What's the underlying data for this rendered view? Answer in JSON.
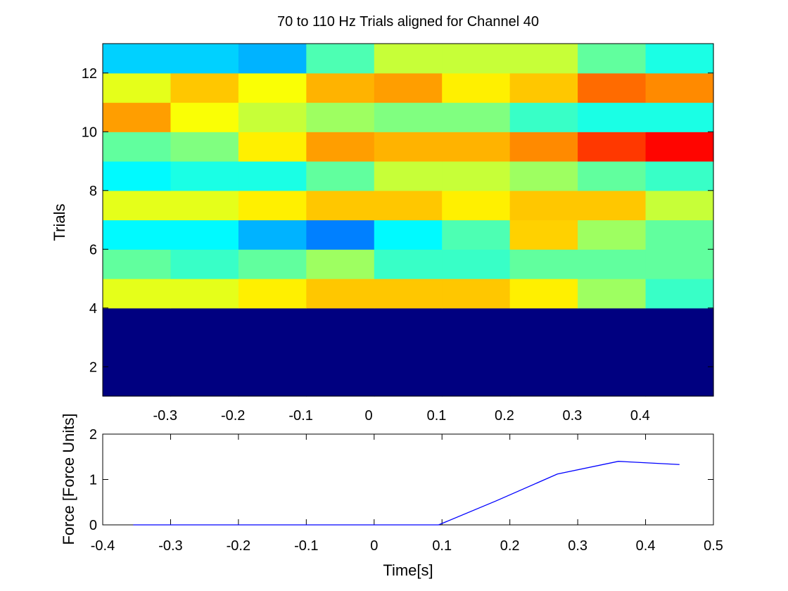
{
  "figure": {
    "title": "70 to 110 Hz Trials aligned for Channel 40"
  },
  "chart_data": [
    {
      "type": "heatmap",
      "title": "70 to 110 Hz Trials aligned for Channel 40",
      "ylabel": "Trials",
      "xlabel": "",
      "x_categories": [
        "-0.3",
        "-0.2",
        "-0.1",
        "0",
        "0.1",
        "0.2",
        "0.3",
        "0.4"
      ],
      "y_tick_labels": [
        "2",
        "4",
        "6",
        "8",
        "10",
        "12"
      ],
      "y_ticks": [
        2,
        4,
        6,
        8,
        10,
        12
      ],
      "ylim": [
        1,
        13
      ],
      "colormap": "jet",
      "color_range": [
        0,
        1
      ],
      "rows": [
        {
          "trial_span": [
            1,
            4
          ],
          "values": [
            0,
            0,
            0,
            0,
            0,
            0,
            0,
            0,
            0
          ]
        },
        {
          "trial_span": [
            4,
            5
          ],
          "values": [
            0.6,
            0.6,
            0.64,
            0.68,
            0.68,
            0.68,
            0.64,
            0.53,
            0.43
          ]
        },
        {
          "trial_span": [
            5,
            6
          ],
          "values": [
            0.47,
            0.43,
            0.47,
            0.53,
            0.43,
            0.43,
            0.47,
            0.47,
            0.47
          ]
        },
        {
          "trial_span": [
            6,
            7
          ],
          "values": [
            0.37,
            0.37,
            0.3,
            0.25,
            0.37,
            0.45,
            0.67,
            0.53,
            0.47
          ]
        },
        {
          "trial_span": [
            7,
            8
          ],
          "values": [
            0.6,
            0.6,
            0.64,
            0.68,
            0.68,
            0.64,
            0.68,
            0.68,
            0.57
          ]
        },
        {
          "trial_span": [
            8,
            9
          ],
          "values": [
            0.37,
            0.4,
            0.4,
            0.47,
            0.57,
            0.57,
            0.53,
            0.47,
            0.43
          ]
        },
        {
          "trial_span": [
            9,
            10
          ],
          "values": [
            0.47,
            0.5,
            0.64,
            0.72,
            0.7,
            0.7,
            0.74,
            0.82,
            0.87
          ]
        },
        {
          "trial_span": [
            10,
            11
          ],
          "values": [
            0.72,
            0.62,
            0.57,
            0.53,
            0.5,
            0.5,
            0.43,
            0.4,
            0.4
          ]
        },
        {
          "trial_span": [
            11,
            12
          ],
          "values": [
            0.6,
            0.68,
            0.62,
            0.7,
            0.72,
            0.64,
            0.68,
            0.77,
            0.74
          ]
        },
        {
          "trial_span": [
            12,
            13
          ],
          "values": [
            0.33,
            0.33,
            0.3,
            0.45,
            0.57,
            0.57,
            0.57,
            0.47,
            0.4
          ]
        }
      ]
    },
    {
      "type": "line",
      "xlabel": "Time[s]",
      "ylabel": "Force [Force Units]",
      "xlim": [
        -0.4,
        0.5
      ],
      "ylim": [
        0,
        2
      ],
      "x_tick_labels": [
        "-0.4",
        "-0.3",
        "-0.2",
        "-0.1",
        "0",
        "0.1",
        "0.2",
        "0.3",
        "0.4",
        "0.5"
      ],
      "x_ticks": [
        -0.4,
        -0.3,
        -0.2,
        -0.1,
        0,
        0.1,
        0.2,
        0.3,
        0.4,
        0.5
      ],
      "y_tick_labels": [
        "0",
        "1",
        "2"
      ],
      "y_ticks": [
        0,
        1,
        2
      ],
      "line_color": "#0000ff",
      "x": [
        -0.355,
        -0.265,
        -0.175,
        -0.085,
        0.005,
        0.095,
        0.18,
        0.27,
        0.36,
        0.45
      ],
      "y": [
        0,
        0,
        0,
        0,
        0,
        0,
        0.53,
        1.12,
        1.4,
        1.33
      ]
    }
  ]
}
